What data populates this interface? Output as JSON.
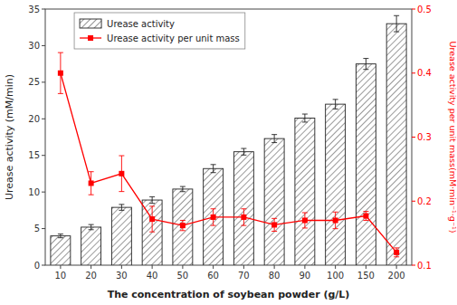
{
  "chart_data": {
    "type": "bar",
    "xlabel": "The concentration of soybean powder (g/L)",
    "ylabel": "Urease activity (mM/min)",
    "y2label": "Urease activity per unit mass(mM·min⁻¹·g⁻¹)",
    "categories": [
      "10",
      "20",
      "30",
      "40",
      "50",
      "60",
      "70",
      "80",
      "90",
      "100",
      "150",
      "200"
    ],
    "series": [
      {
        "name": "Urease activity",
        "type": "bar",
        "color": "white",
        "values": [
          4.0,
          5.2,
          7.9,
          8.9,
          10.4,
          13.2,
          15.5,
          17.3,
          20.1,
          22.0,
          27.5,
          33.0
        ],
        "errors": [
          0.25,
          0.35,
          0.4,
          0.45,
          0.35,
          0.55,
          0.45,
          0.55,
          0.55,
          0.65,
          0.75,
          1.1
        ]
      },
      {
        "name": "Urease activity per unit mass",
        "type": "line",
        "axis": "y2",
        "color": "red",
        "marker": "square",
        "values": [
          0.4,
          0.228,
          0.243,
          0.172,
          0.162,
          0.175,
          0.175,
          0.163,
          0.17,
          0.17,
          0.177,
          0.12
        ],
        "errors": [
          0.032,
          0.018,
          0.028,
          0.02,
          0.008,
          0.013,
          0.013,
          0.01,
          0.012,
          0.013,
          0.007,
          0.007
        ]
      }
    ],
    "ylim": [
      0,
      35
    ],
    "yticks": [
      0,
      5,
      10,
      15,
      20,
      25,
      30,
      35
    ],
    "y2lim": [
      0.1,
      0.5
    ],
    "y2ticks": [
      0.1,
      0.2,
      0.3,
      0.4,
      0.5
    ],
    "grid": false,
    "legend": "upper left"
  }
}
